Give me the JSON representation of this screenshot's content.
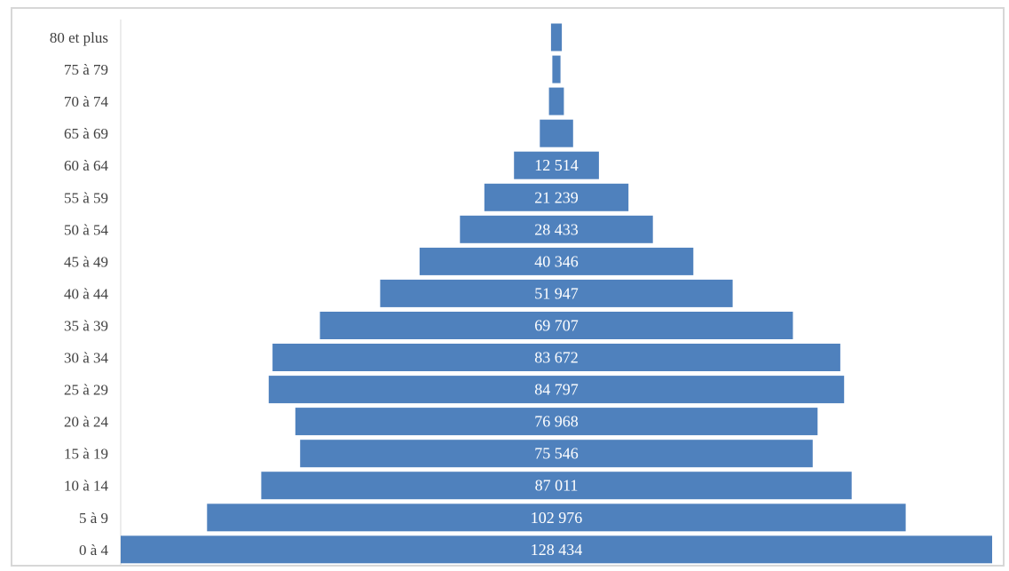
{
  "chart_data": {
    "type": "bar",
    "orientation": "horizontal",
    "layout": "pyramid-centered",
    "title": "",
    "xlabel": "",
    "ylabel": "",
    "bar_color": "#4f81bd",
    "label_color": "#ffffff",
    "grid": false,
    "legend": "none",
    "categories": [
      "80 et plus",
      "75 à 79",
      "70 à 74",
      "65 à 69",
      "60 à 64",
      "55 à 59",
      "50 à 54",
      "45 à 49",
      "40 à 44",
      "35 à 39",
      "30 à 34",
      "25 à 29",
      "20 à 24",
      "15 à 19",
      "10 à 14",
      "5 à 9",
      "0 à 4"
    ],
    "values": [
      1600,
      1200,
      2200,
      4900,
      12514,
      21239,
      28433,
      40346,
      51947,
      69707,
      83672,
      84797,
      76968,
      75546,
      87011,
      102976,
      128434
    ],
    "value_labels": [
      "",
      "",
      "",
      "",
      "12 514",
      "21 239",
      "28 433",
      "40 346",
      "51 947",
      "69 707",
      "83 672",
      "84 797",
      "76 968",
      "75 546",
      "87 011",
      "102 976",
      "128 434"
    ]
  }
}
